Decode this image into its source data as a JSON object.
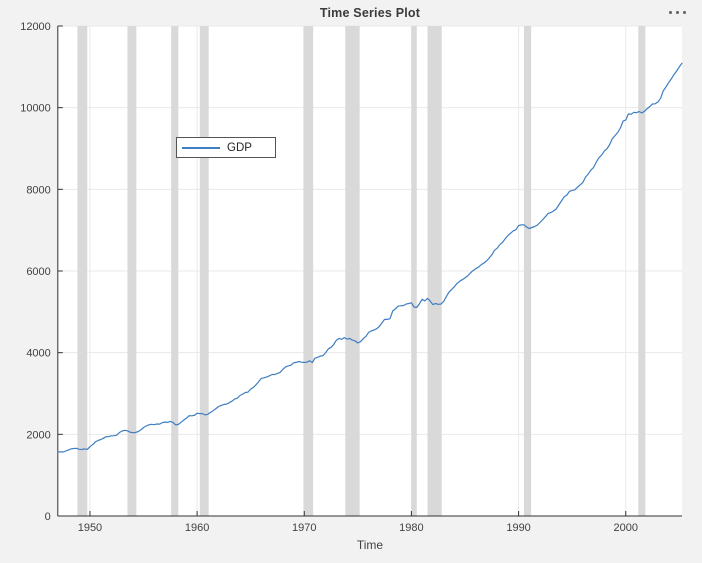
{
  "window": {
    "background_color": "#f2f2f2",
    "plot_background_color": "#ffffff"
  },
  "toolbar": {
    "icon": "ellipsis-icon",
    "dot_color": "#5f5f5f"
  },
  "legend": {
    "items": [
      {
        "label": "GDP",
        "line_color": "#3e7ec1"
      }
    ]
  },
  "chart_data": {
    "type": "line",
    "title": "Time Series Plot",
    "xlabel": "Time",
    "ylabel": "",
    "xlim": [
      1947,
      2005.25
    ],
    "ylim": [
      0,
      12000
    ],
    "x_ticks": [
      1950,
      1960,
      1970,
      1980,
      1990,
      2000
    ],
    "x_tick_labels": [
      "1950",
      "1960",
      "1970",
      "1980",
      "1990",
      "2000"
    ],
    "y_ticks": [
      0,
      2000,
      4000,
      6000,
      8000,
      10000,
      12000
    ],
    "y_tick_labels": [
      "0",
      "2000",
      "4000",
      "6000",
      "8000",
      "10000",
      "12000"
    ],
    "grid": true,
    "grid_color": "#e9e9e9",
    "axis_color": "#333333",
    "tick_label_color": "#424242",
    "band_color": "#d9d9d9",
    "legend_position": "inside-upper-left",
    "recession_bands": [
      [
        1948.83,
        1949.75
      ],
      [
        1953.5,
        1954.33
      ],
      [
        1957.58,
        1958.25
      ],
      [
        1960.25,
        1961.08
      ],
      [
        1969.92,
        1970.83
      ],
      [
        1973.83,
        1975.17
      ],
      [
        1980.0,
        1980.5
      ],
      [
        1981.5,
        1982.83
      ],
      [
        1990.5,
        1991.17
      ],
      [
        2001.17,
        2001.83
      ]
    ],
    "series": [
      {
        "name": "GDP",
        "color": "#3e7ec1",
        "x_start": 1947.0,
        "x_step": 0.25,
        "values": [
          1570.5,
          1568.7,
          1568.0,
          1590.9,
          1616.1,
          1644.6,
          1654.1,
          1658.0,
          1633.2,
          1628.4,
          1646.7,
          1629.9,
          1696.8,
          1747.3,
          1815.8,
          1848.9,
          1871.3,
          1903.1,
          1941.1,
          1944.4,
          1964.7,
          1966.0,
          1978.8,
          2043.8,
          2082.3,
          2098.1,
          2085.4,
          2052.5,
          2042.4,
          2044.3,
          2066.9,
          2107.8,
          2168.5,
          2204.0,
          2233.4,
          2245.3,
          2234.8,
          2252.5,
          2249.8,
          2286.5,
          2300.3,
          2294.6,
          2317.0,
          2292.5,
          2230.6,
          2243.4,
          2295.2,
          2348.0,
          2392.9,
          2455.8,
          2453.9,
          2462.7,
          2517.4,
          2504.8,
          2508.7,
          2476.2,
          2491.2,
          2538.0,
          2579.4,
          2631.2,
          2679.0,
          2708.4,
          2733.3,
          2740.0,
          2775.1,
          2810.6,
          2863.5,
          2885.8,
          2950.0,
          2984.9,
          3025.7,
          3033.6,
          3108.2,
          3150.2,
          3214.1,
          3291.8,
          3372.3,
          3384.0,
          3406.3,
          3433.7,
          3464.1,
          3464.3,
          3491.8,
          3518.2,
          3590.7,
          3651.6,
          3676.5,
          3692.0,
          3750.2,
          3760.9,
          3784.2,
          3766.3,
          3760.0,
          3767.1,
          3800.5,
          3759.8,
          3864.1,
          3885.9,
          3916.7,
          3927.9,
          4000.9,
          4094.3,
          4132.3,
          4201.0,
          4304.3,
          4350.0,
          4327.5,
          4368.8,
          4331.9,
          4345.8,
          4305.3,
          4288.9,
          4237.6,
          4268.6,
          4340.9,
          4397.8,
          4496.8,
          4530.3,
          4552.1,
          4584.8,
          4640.0,
          4731.1,
          4815.8,
          4815.3,
          4830.8,
          5021.2,
          5070.7,
          5137.4,
          5147.4,
          5152.3,
          5189.4,
          5204.7,
          5221.3,
          5115.9,
          5107.4,
          5202.1,
          5307.5,
          5266.1,
          5329.8,
          5263.4,
          5177.1,
          5204.9,
          5185.2,
          5189.8,
          5253.8,
          5372.3,
          5478.4,
          5545.5,
          5614.9,
          5695.1,
          5747.3,
          5786.4,
          5830.2,
          5880.8,
          5951.7,
          6008.6,
          6057.4,
          6092.0,
          6151.7,
          6193.4,
          6245.0,
          6315.0,
          6393.4,
          6506.8,
          6559.1,
          6643.5,
          6699.4,
          6788.6,
          6868.1,
          6923.5,
          6983.1,
          7010.9,
          7112.1,
          7130.3,
          7130.8,
          7076.9,
          7040.8,
          7066.5,
          7090.7,
          7124.1,
          7188.2,
          7257.9,
          7329.5,
          7410.7,
          7429.7,
          7467.5,
          7516.0,
          7617.4,
          7715.1,
          7815.7,
          7859.5,
          7951.6,
          7973.7,
          7988.0,
          8053.1,
          8112.0,
          8169.2,
          8303.1,
          8372.7,
          8470.6,
          8536.1,
          8665.8,
          8773.7,
          8838.4,
          8936.2,
          8995.3,
          9098.9,
          9237.1,
          9315.5,
          9392.6,
          9502.2,
          9671.1,
          9695.6,
          9847.9,
          9836.6,
          9887.7,
          9875.6,
          9905.9,
          9871.1,
          9910.0,
          9977.3,
          10031.6,
          10090.7,
          10095.8,
          10138.6,
          10230.4,
          10410.9,
          10502.6,
          10612.5,
          10704.1,
          10808.9,
          10897.1,
          10999.3,
          11089.2
        ]
      }
    ]
  }
}
